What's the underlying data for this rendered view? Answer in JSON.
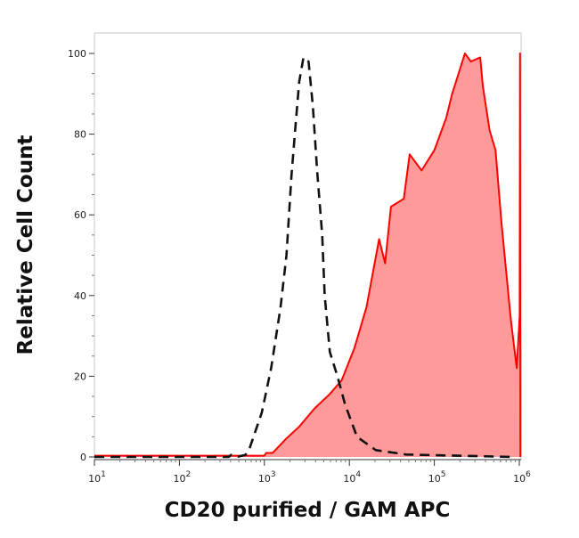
{
  "chart_data": {
    "type": "area",
    "title": "",
    "xlabel": "CD20 purified / GAM APC",
    "ylabel": "Relative Cell Count",
    "x_scale": "log",
    "xlim": [
      10,
      1100000
    ],
    "ylim": [
      0,
      100
    ],
    "x_ticks": [
      {
        "value": 10,
        "base": "10",
        "exp": "1"
      },
      {
        "value": 100,
        "base": "10",
        "exp": "2"
      },
      {
        "value": 1000,
        "base": "10",
        "exp": "3"
      },
      {
        "value": 10000,
        "base": "10",
        "exp": "4"
      },
      {
        "value": 100000,
        "base": "10",
        "exp": "5"
      },
      {
        "value": 1000000,
        "base": "10",
        "exp": "6"
      }
    ],
    "y_ticks": [
      0,
      20,
      40,
      60,
      80,
      100
    ],
    "grid": false,
    "legend": "none",
    "series": [
      {
        "style": "filled solid",
        "line_color": "#ff0000",
        "fill_color": "#ff9a9a",
        "points": [
          [
            10,
            0.3
          ],
          [
            1000,
            0.3
          ],
          [
            1050,
            1.0
          ],
          [
            1250,
            1.0
          ],
          [
            1320,
            1.5
          ],
          [
            1820,
            4.6
          ],
          [
            2570,
            7.5
          ],
          [
            3890,
            12
          ],
          [
            5888,
            15.6
          ],
          [
            8128,
            19
          ],
          [
            11480,
            27
          ],
          [
            15850,
            37
          ],
          [
            22390,
            54
          ],
          [
            26300,
            48
          ],
          [
            30900,
            62
          ],
          [
            43650,
            64
          ],
          [
            51290,
            75
          ],
          [
            70790,
            71
          ],
          [
            100000,
            76
          ],
          [
            138000,
            84
          ],
          [
            162200,
            90
          ],
          [
            229100,
            100
          ],
          [
            269200,
            98
          ],
          [
            346700,
            99
          ],
          [
            371500,
            92
          ],
          [
            446700,
            81
          ],
          [
            524800,
            76
          ],
          [
            616600,
            58
          ],
          [
            794300,
            34
          ],
          [
            933300,
            22
          ],
          [
            1010000,
            35
          ],
          [
            1020000,
            100
          ],
          [
            1030000,
            0
          ]
        ]
      },
      {
        "style": "dashed",
        "line_color": "#111111",
        "points": [
          [
            10,
            0
          ],
          [
            380,
            0
          ],
          [
            407,
            0.5
          ],
          [
            470,
            0
          ],
          [
            600,
            0.5
          ],
          [
            676,
            2.4
          ],
          [
            933,
            11
          ],
          [
            1202,
            22
          ],
          [
            1549,
            37
          ],
          [
            1820,
            50
          ],
          [
            2089,
            70
          ],
          [
            2344,
            83
          ],
          [
            2570,
            93
          ],
          [
            2884,
            99
          ],
          [
            3311,
            98
          ],
          [
            3715,
            87
          ],
          [
            4169,
            71
          ],
          [
            4786,
            55
          ],
          [
            5129,
            40
          ],
          [
            5888,
            26
          ],
          [
            7244,
            20
          ],
          [
            8913,
            13
          ],
          [
            12300,
            5
          ],
          [
            20420,
            1.7
          ],
          [
            46770,
            0.6
          ],
          [
            851000,
            0
          ]
        ]
      }
    ]
  }
}
